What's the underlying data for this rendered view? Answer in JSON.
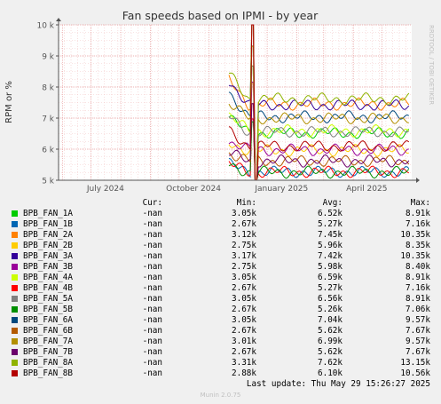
{
  "chart_data": {
    "type": "line",
    "title": "Fan speeds based on IPMI - by year",
    "ylabel": "RPM or %",
    "side_label": "RRDTOOL / TOBI OETIKER",
    "x_ticks": [
      "July 2024",
      "October 2024",
      "January 2025",
      "April 2025"
    ],
    "y_ticks": [
      "5 k",
      "6 k",
      "7 k",
      "8 k",
      "9 k",
      "10 k"
    ],
    "ylim": [
      5000,
      10000
    ],
    "xlim": [
      "2024-05-28",
      "2025-06-01"
    ],
    "data_start": "2024-11-22",
    "spike_date": "2024-12-17",
    "grid": true,
    "series": [
      {
        "name": "BPB_FAN_1A",
        "color": "#00cc00",
        "cur": "-nan",
        "min": "3.05k",
        "avg": "6.52k",
        "max": "8.91k",
        "level": 6520
      },
      {
        "name": "BPB_FAN_1B",
        "color": "#0066b3",
        "cur": "-nan",
        "min": "2.67k",
        "avg": "5.27k",
        "max": "7.16k",
        "level": 5270
      },
      {
        "name": "BPB_FAN_2A",
        "color": "#ff8000",
        "cur": "-nan",
        "min": "3.12k",
        "avg": "7.45k",
        "max": "10.35k",
        "level": 7450
      },
      {
        "name": "BPB_FAN_2B",
        "color": "#ffcc00",
        "cur": "-nan",
        "min": "2.75k",
        "avg": "5.96k",
        "max": "8.35k",
        "level": 5960
      },
      {
        "name": "BPB_FAN_3A",
        "color": "#330099",
        "cur": "-nan",
        "min": "3.17k",
        "avg": "7.42k",
        "max": "10.35k",
        "level": 7420
      },
      {
        "name": "BPB_FAN_3B",
        "color": "#990099",
        "cur": "-nan",
        "min": "2.75k",
        "avg": "5.98k",
        "max": "8.40k",
        "level": 5980
      },
      {
        "name": "BPB_FAN_4A",
        "color": "#ccff00",
        "cur": "-nan",
        "min": "3.05k",
        "avg": "6.59k",
        "max": "8.91k",
        "level": 6590
      },
      {
        "name": "BPB_FAN_4B",
        "color": "#ff0000",
        "cur": "-nan",
        "min": "2.67k",
        "avg": "5.27k",
        "max": "7.16k",
        "level": 5270
      },
      {
        "name": "BPB_FAN_5A",
        "color": "#808080",
        "cur": "-nan",
        "min": "3.05k",
        "avg": "6.56k",
        "max": "8.91k",
        "level": 6560
      },
      {
        "name": "BPB_FAN_5B",
        "color": "#008f00",
        "cur": "-nan",
        "min": "2.67k",
        "avg": "5.26k",
        "max": "7.06k",
        "level": 5260
      },
      {
        "name": "BPB_FAN_6A",
        "color": "#00487d",
        "cur": "-nan",
        "min": "3.05k",
        "avg": "7.04k",
        "max": "9.57k",
        "level": 7040
      },
      {
        "name": "BPB_FAN_6B",
        "color": "#b35a00",
        "cur": "-nan",
        "min": "2.67k",
        "avg": "5.62k",
        "max": "7.67k",
        "level": 5620
      },
      {
        "name": "BPB_FAN_7A",
        "color": "#b38f00",
        "cur": "-nan",
        "min": "3.01k",
        "avg": "6.99k",
        "max": "9.57k",
        "level": 6990
      },
      {
        "name": "BPB_FAN_7B",
        "color": "#6b006b",
        "cur": "-nan",
        "min": "2.67k",
        "avg": "5.62k",
        "max": "7.67k",
        "level": 5620
      },
      {
        "name": "BPB_FAN_8A",
        "color": "#8fb300",
        "cur": "-nan",
        "min": "3.31k",
        "avg": "7.62k",
        "max": "13.15k",
        "level": 7620
      },
      {
        "name": "BPB_FAN_8B",
        "color": "#b30000",
        "cur": "-nan",
        "min": "2.88k",
        "avg": "6.10k",
        "max": "10.56k",
        "level": 6100
      }
    ]
  },
  "legend_header": {
    "cur": "Cur:",
    "min": "Min:",
    "avg": "Avg:",
    "max": "Max:"
  },
  "last_update": "Last update: Thu May 29 15:26:27 2025",
  "munin_version": "Munin 2.0.75"
}
